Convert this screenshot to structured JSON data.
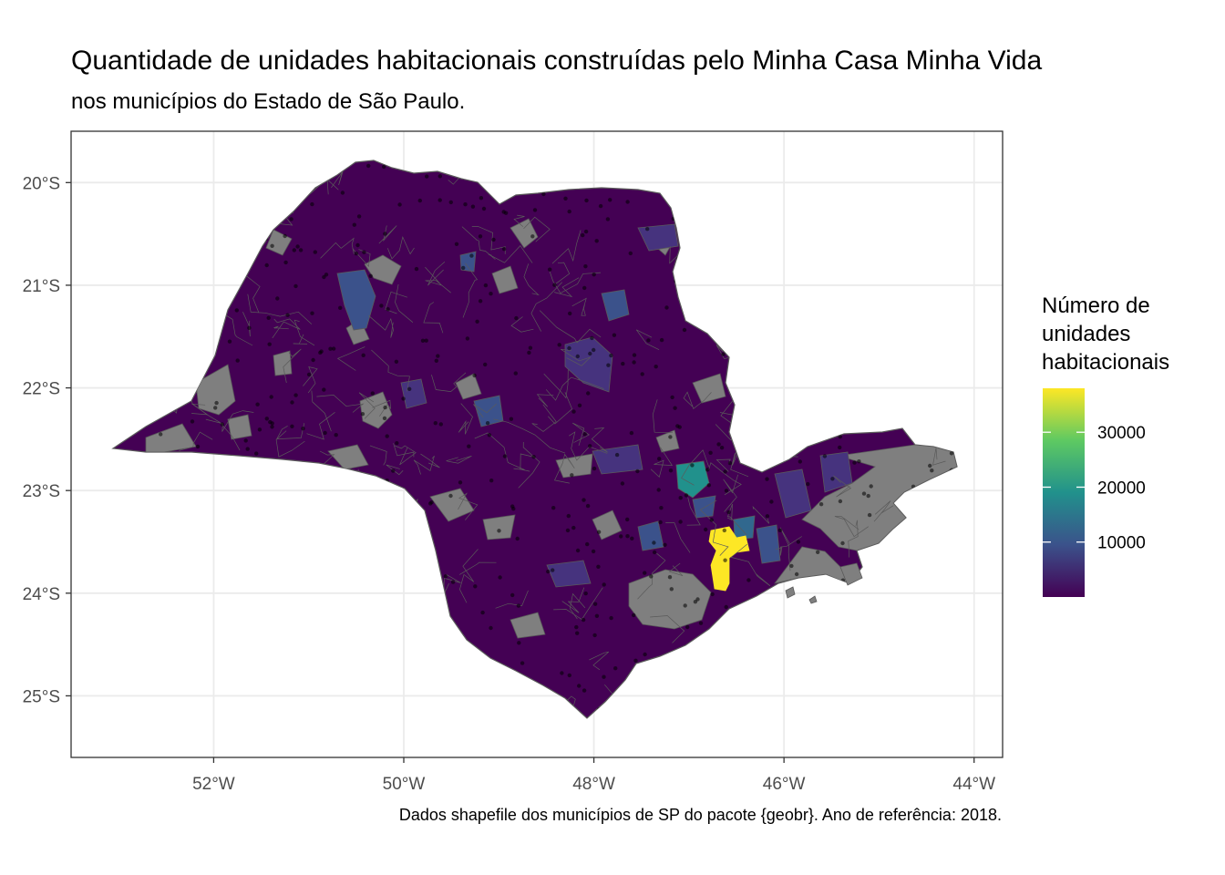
{
  "title": "Quantidade de unidades habitacionais construídas pelo Minha Casa Minha Vida",
  "subtitle": "nos municípios do Estado de São Paulo.",
  "caption": "Dados shapefile dos municípios de SP do pacote {geobr}. Ano de referência: 2018.",
  "legend": {
    "title_lines": [
      "Número de",
      "unidades",
      "habitacionais"
    ],
    "ticks": [
      "10000",
      "20000",
      "30000"
    ],
    "tick_values": [
      10000,
      20000,
      30000
    ],
    "range": [
      0,
      38000
    ],
    "palette": [
      "#440154",
      "#3b528b",
      "#21918c",
      "#5ec962",
      "#fde725"
    ]
  },
  "axes": {
    "x_ticks": [
      "52°W",
      "50°W",
      "48°W",
      "46°W",
      "44°W"
    ],
    "x_values": [
      -52,
      -50,
      -48,
      -46,
      -44
    ],
    "y_ticks": [
      "20°S",
      "21°S",
      "22°S",
      "23°S",
      "24°S",
      "25°S"
    ],
    "y_values": [
      -20,
      -21,
      -22,
      -23,
      -24,
      -25
    ],
    "xlim": [
      -53.5,
      -43.7
    ],
    "ylim": [
      -25.6,
      -19.5
    ]
  },
  "colors": {
    "no_data": "#7f7f7f",
    "border": "#5a5a5a",
    "grid": "#ebebeb",
    "base_fill": "#440154"
  }
}
